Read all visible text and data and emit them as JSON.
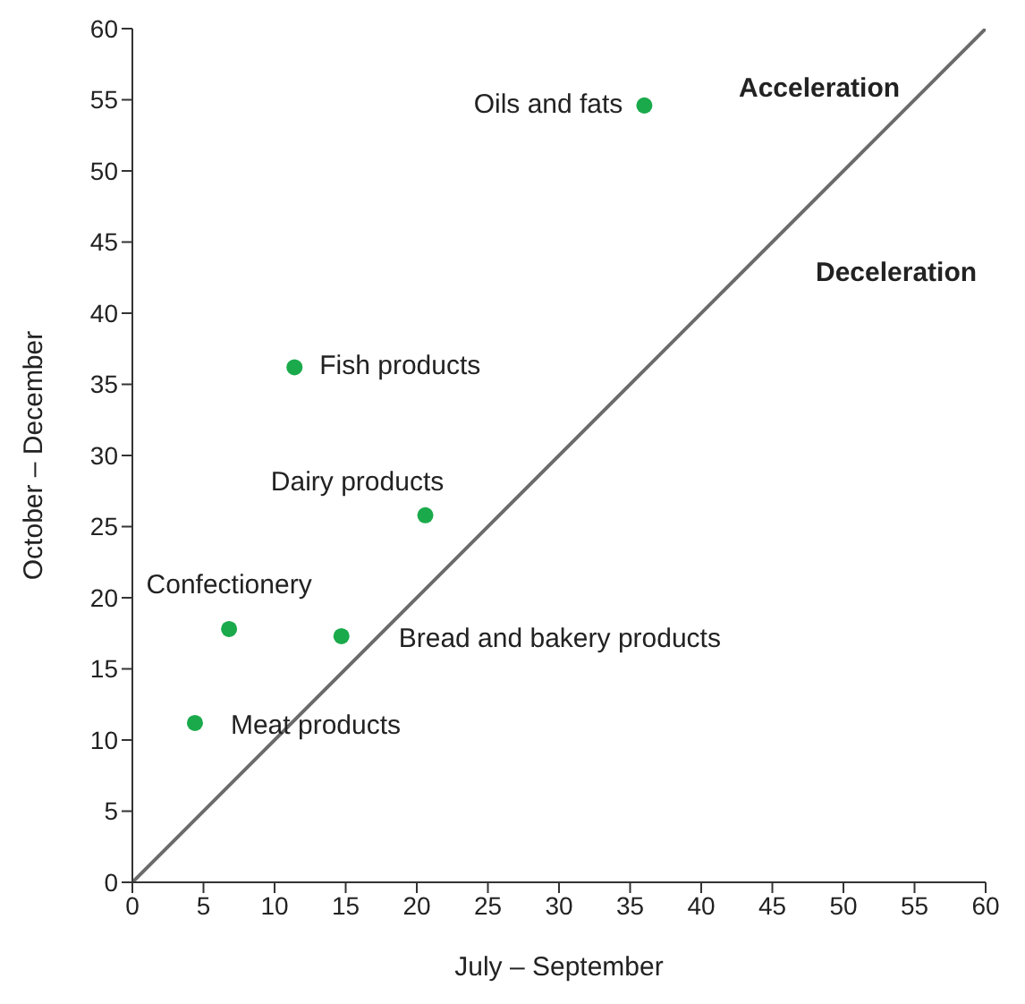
{
  "chart_data": {
    "type": "scatter",
    "xlabel": "July – September",
    "ylabel": "October – December",
    "xlim": [
      0,
      60
    ],
    "ylim": [
      0,
      60
    ],
    "xticks": [
      0,
      5,
      10,
      15,
      20,
      25,
      30,
      35,
      40,
      45,
      50,
      55,
      60
    ],
    "yticks": [
      0,
      5,
      10,
      15,
      20,
      25,
      30,
      35,
      40,
      45,
      50,
      55,
      60
    ],
    "grid": false,
    "legend": false,
    "marker": "circle",
    "series": [
      {
        "color": "#1aaa4b",
        "x": [
          36,
          11.4,
          20.6,
          6.8,
          14.7,
          4.4
        ],
        "values": [
          54.6,
          36.2,
          25.8,
          17.8,
          17.3,
          11.2
        ]
      },
      {
        "type": "line",
        "color": "#6b6b6b",
        "x": [
          0,
          60
        ],
        "values": [
          0,
          60
        ],
        "line_style": "solid",
        "marker": "none"
      }
    ],
    "annotations": [
      {
        "text": "Oils and fats",
        "x": 36,
        "y": 54.6
      },
      {
        "text": "Fish products",
        "x": 11.4,
        "y": 36.2
      },
      {
        "text": "Dairy products",
        "x": 20.6,
        "y": 25.8
      },
      {
        "text": "Confectionery",
        "x": 6.8,
        "y": 17.8
      },
      {
        "text": "Bread and bakery products",
        "x": 14.7,
        "y": 17.3
      },
      {
        "text": "Meat products",
        "x": 4.4,
        "y": 11.2
      },
      "Acceleration",
      "Deceleration"
    ]
  }
}
